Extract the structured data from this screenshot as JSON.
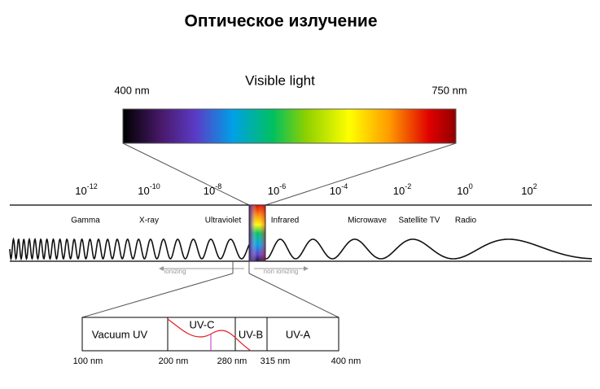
{
  "title": "Оптическое излучение",
  "visible_light": {
    "label": "Visible light",
    "min_label": "400 nm",
    "max_label": "750 nm"
  },
  "scale": {
    "ticks": [
      {
        "base": "10",
        "exponent": "-12"
      },
      {
        "base": "10",
        "exponent": "-10"
      },
      {
        "base": "10",
        "exponent": "-8"
      },
      {
        "base": "10",
        "exponent": "-6"
      },
      {
        "base": "10",
        "exponent": "-4"
      },
      {
        "base": "10",
        "exponent": "-2"
      },
      {
        "base": "10",
        "exponent": "0"
      },
      {
        "base": "10",
        "exponent": "2"
      }
    ],
    "regions": [
      "Gamma",
      "X-ray",
      "Ultraviolet",
      "Infrared",
      "Microwave",
      "Satellite TV",
      "Radio"
    ]
  },
  "arrows": {
    "ionizing": "ionizing",
    "non_ionizing": "non ionizing"
  },
  "uv": {
    "bands": [
      "Vacuum UV",
      "UV-C",
      "UV-B",
      "UV-A"
    ],
    "wavelengths": [
      "100 nm",
      "200 nm",
      "280 nm",
      "315 nm",
      "400 nm"
    ]
  }
}
